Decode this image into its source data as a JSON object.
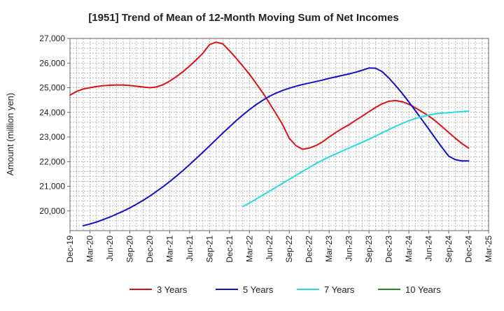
{
  "chart_data": {
    "type": "line",
    "title": "[1951]  Trend of Mean of 12-Month Moving Sum of Net Incomes",
    "xlabel": "",
    "ylabel": "Amount (million yen)",
    "ylim": [
      19200,
      27000
    ],
    "yticks": [
      20000,
      21000,
      22000,
      23000,
      24000,
      25000,
      26000,
      27000
    ],
    "ytick_labels": [
      "20,000",
      "21,000",
      "22,000",
      "23,000",
      "24,000",
      "25,000",
      "26,000",
      "27,000"
    ],
    "xlim": [
      "2019-12",
      "2025-03"
    ],
    "xticks": [
      "2019-12",
      "2020-03",
      "2020-06",
      "2020-09",
      "2020-12",
      "2021-03",
      "2021-06",
      "2021-09",
      "2021-12",
      "2022-03",
      "2022-06",
      "2022-09",
      "2022-12",
      "2023-03",
      "2023-06",
      "2023-09",
      "2023-12",
      "2024-03",
      "2024-06",
      "2024-09",
      "2024-12",
      "2025-03"
    ],
    "xtick_labels": [
      "Dec-19",
      "Mar-20",
      "Jun-20",
      "Sep-20",
      "Dec-20",
      "Mar-21",
      "Jun-21",
      "Sep-21",
      "Dec-21",
      "Mar-22",
      "Jun-22",
      "Sep-22",
      "Dec-22",
      "Mar-23",
      "Jun-23",
      "Sep-23",
      "Dec-23",
      "Mar-24",
      "Jun-24",
      "Sep-24",
      "Dec-24",
      "Mar-25"
    ],
    "grid": true,
    "legend_position": "bottom",
    "series": [
      {
        "name": "3 Years",
        "color": "#dd1111",
        "points": [
          [
            "2019-12",
            24700
          ],
          [
            "2020-01",
            24850
          ],
          [
            "2020-02",
            24950
          ],
          [
            "2020-03",
            25000
          ],
          [
            "2020-04",
            25050
          ],
          [
            "2020-05",
            25080
          ],
          [
            "2020-06",
            25100
          ],
          [
            "2020-07",
            25110
          ],
          [
            "2020-08",
            25110
          ],
          [
            "2020-09",
            25090
          ],
          [
            "2020-10",
            25060
          ],
          [
            "2020-11",
            25030
          ],
          [
            "2020-12",
            25000
          ],
          [
            "2021-01",
            25030
          ],
          [
            "2021-02",
            25120
          ],
          [
            "2021-03",
            25270
          ],
          [
            "2021-04",
            25450
          ],
          [
            "2021-05",
            25650
          ],
          [
            "2021-06",
            25880
          ],
          [
            "2021-07",
            26130
          ],
          [
            "2021-08",
            26400
          ],
          [
            "2021-09",
            26750
          ],
          [
            "2021-10",
            26850
          ],
          [
            "2021-11",
            26780
          ],
          [
            "2021-12",
            26500
          ],
          [
            "2022-01",
            26200
          ],
          [
            "2022-02",
            25880
          ],
          [
            "2022-03",
            25550
          ],
          [
            "2022-04",
            25180
          ],
          [
            "2022-05",
            24800
          ],
          [
            "2022-06",
            24380
          ],
          [
            "2022-07",
            23950
          ],
          [
            "2022-08",
            23500
          ],
          [
            "2022-09",
            22950
          ],
          [
            "2022-10",
            22650
          ],
          [
            "2022-11",
            22500
          ],
          [
            "2022-12",
            22550
          ],
          [
            "2023-01",
            22650
          ],
          [
            "2023-02",
            22800
          ],
          [
            "2023-03",
            23000
          ],
          [
            "2023-04",
            23180
          ],
          [
            "2023-05",
            23350
          ],
          [
            "2023-06",
            23500
          ],
          [
            "2023-07",
            23680
          ],
          [
            "2023-08",
            23850
          ],
          [
            "2023-09",
            24030
          ],
          [
            "2023-10",
            24200
          ],
          [
            "2023-11",
            24350
          ],
          [
            "2023-12",
            24450
          ],
          [
            "2024-01",
            24480
          ],
          [
            "2024-02",
            24430
          ],
          [
            "2024-03",
            24330
          ],
          [
            "2024-04",
            24180
          ],
          [
            "2024-05",
            24020
          ],
          [
            "2024-06",
            23850
          ],
          [
            "2024-07",
            23650
          ],
          [
            "2024-08",
            23420
          ],
          [
            "2024-09",
            23180
          ],
          [
            "2024-10",
            22950
          ],
          [
            "2024-11",
            22730
          ],
          [
            "2024-12",
            22550
          ]
        ]
      },
      {
        "name": "5 Years",
        "color": "#1111cc",
        "points": [
          [
            "2020-02",
            19400
          ],
          [
            "2020-03",
            19470
          ],
          [
            "2020-04",
            19550
          ],
          [
            "2020-05",
            19650
          ],
          [
            "2020-06",
            19750
          ],
          [
            "2020-07",
            19870
          ],
          [
            "2020-08",
            19990
          ],
          [
            "2020-09",
            20120
          ],
          [
            "2020-10",
            20270
          ],
          [
            "2020-11",
            20430
          ],
          [
            "2020-12",
            20600
          ],
          [
            "2021-01",
            20790
          ],
          [
            "2021-02",
            20980
          ],
          [
            "2021-03",
            21190
          ],
          [
            "2021-04",
            21410
          ],
          [
            "2021-05",
            21640
          ],
          [
            "2021-06",
            21880
          ],
          [
            "2021-07",
            22130
          ],
          [
            "2021-08",
            22380
          ],
          [
            "2021-09",
            22640
          ],
          [
            "2021-10",
            22900
          ],
          [
            "2021-11",
            23160
          ],
          [
            "2021-12",
            23410
          ],
          [
            "2022-01",
            23660
          ],
          [
            "2022-02",
            23890
          ],
          [
            "2022-03",
            24110
          ],
          [
            "2022-04",
            24310
          ],
          [
            "2022-05",
            24490
          ],
          [
            "2022-06",
            24650
          ],
          [
            "2022-07",
            24780
          ],
          [
            "2022-08",
            24890
          ],
          [
            "2022-09",
            24980
          ],
          [
            "2022-10",
            25060
          ],
          [
            "2022-11",
            25130
          ],
          [
            "2022-12",
            25190
          ],
          [
            "2023-01",
            25250
          ],
          [
            "2023-02",
            25310
          ],
          [
            "2023-03",
            25380
          ],
          [
            "2023-04",
            25440
          ],
          [
            "2023-05",
            25500
          ],
          [
            "2023-06",
            25560
          ],
          [
            "2023-07",
            25630
          ],
          [
            "2023-08",
            25710
          ],
          [
            "2023-09",
            25800
          ],
          [
            "2023-10",
            25790
          ],
          [
            "2023-11",
            25650
          ],
          [
            "2023-12",
            25390
          ],
          [
            "2024-01",
            25090
          ],
          [
            "2024-02",
            24770
          ],
          [
            "2024-03",
            24420
          ],
          [
            "2024-04",
            24060
          ],
          [
            "2024-05",
            23690
          ],
          [
            "2024-06",
            23320
          ],
          [
            "2024-07",
            22940
          ],
          [
            "2024-08",
            22570
          ],
          [
            "2024-09",
            22220
          ],
          [
            "2024-10",
            22080
          ],
          [
            "2024-11",
            22030
          ],
          [
            "2024-12",
            22030
          ]
        ]
      },
      {
        "name": "7 Years",
        "color": "#22dddd",
        "points": [
          [
            "2022-02",
            20180
          ],
          [
            "2022-03",
            20320
          ],
          [
            "2022-04",
            20480
          ],
          [
            "2022-05",
            20640
          ],
          [
            "2022-06",
            20800
          ],
          [
            "2022-07",
            20960
          ],
          [
            "2022-08",
            21120
          ],
          [
            "2022-09",
            21280
          ],
          [
            "2022-10",
            21440
          ],
          [
            "2022-11",
            21600
          ],
          [
            "2022-12",
            21760
          ],
          [
            "2023-01",
            21920
          ],
          [
            "2023-02",
            22060
          ],
          [
            "2023-03",
            22190
          ],
          [
            "2023-04",
            22310
          ],
          [
            "2023-05",
            22430
          ],
          [
            "2023-06",
            22550
          ],
          [
            "2023-07",
            22670
          ],
          [
            "2023-08",
            22790
          ],
          [
            "2023-09",
            22910
          ],
          [
            "2023-10",
            23040
          ],
          [
            "2023-11",
            23170
          ],
          [
            "2023-12",
            23300
          ],
          [
            "2024-01",
            23430
          ],
          [
            "2024-02",
            23550
          ],
          [
            "2024-03",
            23660
          ],
          [
            "2024-04",
            23750
          ],
          [
            "2024-05",
            23830
          ],
          [
            "2024-06",
            23890
          ],
          [
            "2024-07",
            23940
          ],
          [
            "2024-08",
            23970
          ],
          [
            "2024-09",
            23990
          ],
          [
            "2024-10",
            24010
          ],
          [
            "2024-11",
            24030
          ],
          [
            "2024-12",
            24050
          ]
        ]
      },
      {
        "name": "10 Years",
        "color": "#228822",
        "points": []
      }
    ]
  }
}
